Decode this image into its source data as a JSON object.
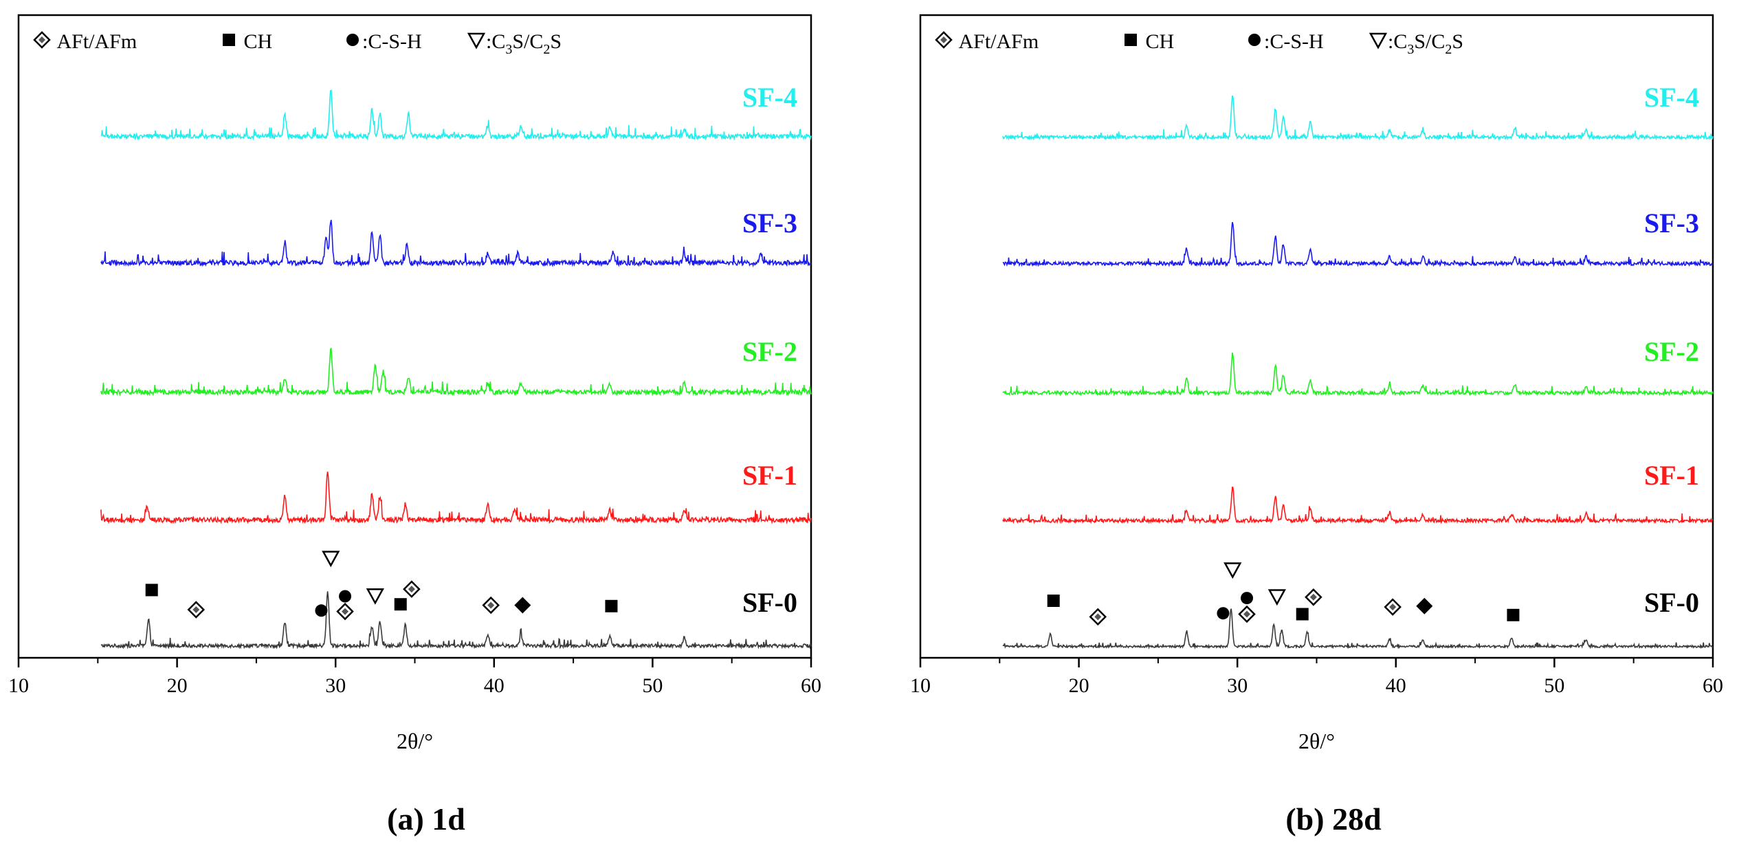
{
  "colors": {
    "SF-0": "#3a3a3a",
    "SF-1": "#ff1a1a",
    "SF-2": "#22ee22",
    "SF-3": "#1a1aee",
    "SF-4": "#22eeee"
  },
  "chart_data": [
    {
      "type": "line",
      "subplot": "(a) 1d",
      "caption": "(a) 1d",
      "xlabel": "2θ/°",
      "ylabel": "",
      "xlim": [
        10,
        60
      ],
      "xticks": [
        "10",
        "20",
        "30",
        "40",
        "50",
        "60"
      ],
      "legend": [
        {
          "symbol": "diamond-dot",
          "text": " AFt/AFm"
        },
        {
          "symbol": "square",
          "text": " CH"
        },
        {
          "symbol": "circle",
          "text": ":C-S-H"
        },
        {
          "symbol": "triangle-down",
          "text": ":C",
          "parts": [
            "3",
            "S/C",
            "2",
            "S"
          ]
        }
      ],
      "x_range_data": [
        15.2,
        60
      ],
      "series": [
        {
          "name": "SF-0",
          "label": "SF-0",
          "offset": 0,
          "noise": 5,
          "peaks": [
            [
              18.2,
              38
            ],
            [
              26.8,
              34
            ],
            [
              29.5,
              78
            ],
            [
              32.3,
              28
            ],
            [
              32.8,
              35
            ],
            [
              34.4,
              30
            ],
            [
              39.6,
              16
            ],
            [
              41.7,
              14
            ],
            [
              47.3,
              14
            ],
            [
              52.0,
              12
            ]
          ]
        },
        {
          "name": "SF-1",
          "label": "SF-1",
          "offset": 1,
          "noise": 7,
          "peaks": [
            [
              18.1,
              18
            ],
            [
              26.8,
              35
            ],
            [
              29.5,
              72
            ],
            [
              32.3,
              38
            ],
            [
              32.8,
              32
            ],
            [
              34.4,
              24
            ],
            [
              39.6,
              24
            ],
            [
              41.3,
              14
            ],
            [
              47.3,
              14
            ],
            [
              52.0,
              12
            ]
          ]
        },
        {
          "name": "SF-2",
          "label": "SF-2",
          "offset": 2,
          "noise": 7,
          "peaks": [
            [
              26.8,
              20
            ],
            [
              29.7,
              65
            ],
            [
              32.5,
              42
            ],
            [
              33.0,
              30
            ],
            [
              34.6,
              22
            ],
            [
              39.6,
              14
            ],
            [
              41.7,
              14
            ],
            [
              47.3,
              12
            ],
            [
              52.0,
              14
            ]
          ]
        },
        {
          "name": "SF-3",
          "label": "SF-3",
          "offset": 3,
          "noise": 7,
          "peaks": [
            [
              26.8,
              30
            ],
            [
              29.4,
              35
            ],
            [
              29.7,
              62
            ],
            [
              32.3,
              45
            ],
            [
              32.8,
              40
            ],
            [
              34.5,
              28
            ],
            [
              39.6,
              14
            ],
            [
              41.5,
              14
            ],
            [
              47.5,
              16
            ],
            [
              52.0,
              12
            ],
            [
              56.8,
              14
            ]
          ]
        },
        {
          "name": "SF-4",
          "label": "SF-4",
          "offset": 4,
          "noise": 7,
          "peaks": [
            [
              26.8,
              32
            ],
            [
              29.7,
              68
            ],
            [
              32.3,
              40
            ],
            [
              32.8,
              34
            ],
            [
              34.6,
              32
            ],
            [
              39.6,
              16
            ],
            [
              41.7,
              14
            ],
            [
              47.3,
              14
            ],
            [
              52.0,
              12
            ]
          ]
        }
      ],
      "markers": [
        {
          "symbol": "square",
          "x": 18.4,
          "y": 52
        },
        {
          "symbol": "diamond-dot",
          "x": 21.2,
          "y": 30
        },
        {
          "symbol": "triangle-down",
          "x": 29.7,
          "y": 88
        },
        {
          "symbol": "circle",
          "x": 29.1,
          "y": 29
        },
        {
          "symbol": "circle",
          "x": 30.6,
          "y": 45
        },
        {
          "symbol": "diamond-dot",
          "x": 30.6,
          "y": 28
        },
        {
          "symbol": "triangle-down",
          "x": 32.5,
          "y": 46
        },
        {
          "symbol": "diamond-dot",
          "x": 34.8,
          "y": 53
        },
        {
          "symbol": "square",
          "x": 34.1,
          "y": 36
        },
        {
          "symbol": "diamond-dot",
          "x": 39.8,
          "y": 35
        },
        {
          "symbol": "diamond",
          "x": 41.8,
          "y": 35
        },
        {
          "symbol": "square",
          "x": 47.4,
          "y": 34
        }
      ]
    },
    {
      "type": "line",
      "subplot": "(b) 28d",
      "caption": "(b) 28d",
      "xlabel": "2θ/°",
      "ylabel": "",
      "xlim": [
        10,
        60
      ],
      "xticks": [
        "10",
        "20",
        "30",
        "40",
        "50",
        "60"
      ],
      "legend": [
        {
          "symbol": "diamond-dot",
          "text": " AFt/AFm"
        },
        {
          "symbol": "square",
          "text": " CH"
        },
        {
          "symbol": "circle",
          "text": ":C-S-H"
        },
        {
          "symbol": "triangle-down",
          "text": ":C",
          "parts": [
            "3",
            "S/C",
            "2",
            "S"
          ]
        }
      ],
      "x_range_data": [
        15.2,
        60
      ],
      "series": [
        {
          "name": "SF-0",
          "label": "SF-0",
          "offset": 0,
          "noise": 3,
          "peaks": [
            [
              18.2,
              18
            ],
            [
              26.8,
              22
            ],
            [
              29.6,
              55
            ],
            [
              32.3,
              32
            ],
            [
              32.8,
              25
            ],
            [
              34.4,
              20
            ],
            [
              39.6,
              10
            ],
            [
              41.7,
              10
            ],
            [
              47.3,
              12
            ],
            [
              52.0,
              10
            ]
          ]
        },
        {
          "name": "SF-1",
          "label": "SF-1",
          "offset": 1,
          "noise": 5,
          "peaks": [
            [
              26.8,
              14
            ],
            [
              29.7,
              48
            ],
            [
              32.4,
              35
            ],
            [
              32.9,
              22
            ],
            [
              34.6,
              16
            ],
            [
              39.6,
              12
            ],
            [
              41.7,
              10
            ],
            [
              47.3,
              10
            ],
            [
              52.0,
              10
            ]
          ]
        },
        {
          "name": "SF-2",
          "label": "SF-2",
          "offset": 2,
          "noise": 5,
          "peaks": [
            [
              26.8,
              22
            ],
            [
              29.7,
              58
            ],
            [
              32.4,
              38
            ],
            [
              32.9,
              26
            ],
            [
              34.6,
              18
            ],
            [
              39.6,
              12
            ],
            [
              41.7,
              10
            ],
            [
              47.5,
              10
            ],
            [
              52.0,
              10
            ]
          ]
        },
        {
          "name": "SF-3",
          "label": "SF-3",
          "offset": 3,
          "noise": 5,
          "peaks": [
            [
              26.8,
              22
            ],
            [
              29.7,
              60
            ],
            [
              32.4,
              40
            ],
            [
              32.9,
              28
            ],
            [
              34.6,
              20
            ],
            [
              39.6,
              10
            ],
            [
              41.7,
              10
            ],
            [
              47.5,
              10
            ],
            [
              52.0,
              10
            ]
          ]
        },
        {
          "name": "SF-4",
          "label": "SF-4",
          "offset": 4,
          "noise": 5,
          "peaks": [
            [
              26.8,
              18
            ],
            [
              29.7,
              62
            ],
            [
              32.4,
              40
            ],
            [
              32.9,
              30
            ],
            [
              34.6,
              22
            ],
            [
              39.6,
              10
            ],
            [
              41.7,
              10
            ],
            [
              47.5,
              10
            ],
            [
              52.0,
              10
            ]
          ]
        }
      ],
      "markers": [
        {
          "symbol": "square",
          "x": 18.4,
          "y": 40
        },
        {
          "symbol": "diamond-dot",
          "x": 21.2,
          "y": 22
        },
        {
          "symbol": "triangle-down",
          "x": 29.7,
          "y": 75
        },
        {
          "symbol": "circle",
          "x": 29.1,
          "y": 26
        },
        {
          "symbol": "circle",
          "x": 30.6,
          "y": 43
        },
        {
          "symbol": "diamond-dot",
          "x": 30.6,
          "y": 25
        },
        {
          "symbol": "triangle-down",
          "x": 32.5,
          "y": 45
        },
        {
          "symbol": "diamond-dot",
          "x": 34.8,
          "y": 44
        },
        {
          "symbol": "square",
          "x": 34.1,
          "y": 25
        },
        {
          "symbol": "diamond-dot",
          "x": 39.8,
          "y": 33
        },
        {
          "symbol": "diamond",
          "x": 41.8,
          "y": 34
        },
        {
          "symbol": "square",
          "x": 47.4,
          "y": 24
        }
      ]
    }
  ]
}
